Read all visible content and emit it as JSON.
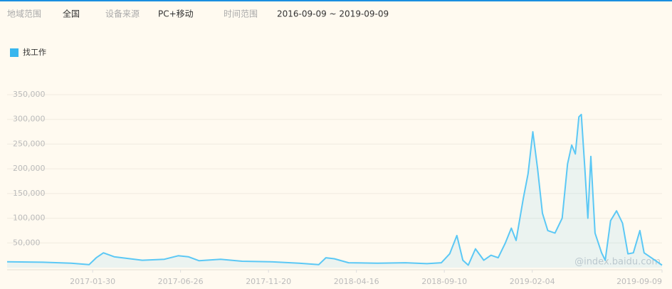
{
  "filters": [
    {
      "label": "地域范围",
      "value": "全国"
    },
    {
      "label": "设备来源",
      "value": "PC+移动"
    },
    {
      "label": "时间范围",
      "value": "2016-09-09 ~ 2019-09-09"
    }
  ],
  "chart_data": {
    "type": "line",
    "watermark": "@index.baidu.com",
    "xlim": [
      "2016-09-09",
      "2019-09-09"
    ],
    "xticks": [
      "2017-01-30",
      "2017-06-26",
      "2017-11-20",
      "2018-04-16",
      "2018-09-10",
      "2019-02-04",
      "2019-09-09"
    ],
    "ylim": [
      0,
      350000
    ],
    "yticks": [
      {
        "value": 50000,
        "label": "50,000"
      },
      {
        "value": 100000,
        "label": "100,000"
      },
      {
        "value": 150000,
        "label": "150,000"
      },
      {
        "value": 200000,
        "label": "200,000"
      },
      {
        "value": 250000,
        "label": "250,000"
      },
      {
        "value": 300000,
        "label": "300,000"
      },
      {
        "value": 350000,
        "label": "350,000"
      }
    ],
    "grid": true,
    "legend": "top-left",
    "x": [
      "2016-09-09",
      "2016-11-08",
      "2016-12-25",
      "2017-01-24",
      "2017-02-05",
      "2017-02-17",
      "2017-03-07",
      "2017-04-23",
      "2017-05-30",
      "2017-06-22",
      "2017-07-09",
      "2017-07-27",
      "2017-09-01",
      "2017-10-07",
      "2017-11-23",
      "2018-01-10",
      "2018-02-12",
      "2018-02-24",
      "2018-03-10",
      "2018-04-03",
      "2018-05-21",
      "2018-07-07",
      "2018-08-12",
      "2018-09-05",
      "2018-09-19",
      "2018-10-01",
      "2018-10-11",
      "2018-10-20",
      "2018-11-01",
      "2018-11-15",
      "2018-11-27",
      "2018-12-09",
      "2018-12-21",
      "2018-12-31",
      "2019-01-08",
      "2019-01-20",
      "2019-01-28",
      "2019-02-05",
      "2019-02-13",
      "2019-02-21",
      "2019-03-02",
      "2019-03-14",
      "2019-03-26",
      "2019-04-04",
      "2019-04-11",
      "2019-04-17",
      "2019-04-23",
      "2019-04-27",
      "2019-05-03",
      "2019-05-08",
      "2019-05-13",
      "2019-05-20",
      "2019-05-31",
      "2019-06-06",
      "2019-06-15",
      "2019-06-25",
      "2019-07-05",
      "2019-07-14",
      "2019-07-23",
      "2019-08-03",
      "2019-08-10",
      "2019-08-22",
      "2019-09-09"
    ],
    "series": [
      {
        "name": "找工作",
        "color": "#5bc8f5",
        "values": [
          12000,
          11000,
          9000,
          6000,
          20000,
          30000,
          22000,
          15000,
          17000,
          24000,
          22000,
          14000,
          17000,
          13000,
          12000,
          9000,
          6000,
          20000,
          18000,
          10000,
          9000,
          10000,
          8000,
          10000,
          28000,
          65000,
          15000,
          5000,
          38000,
          15000,
          25000,
          20000,
          50000,
          80000,
          55000,
          140000,
          190000,
          275000,
          200000,
          110000,
          75000,
          70000,
          100000,
          210000,
          248000,
          230000,
          305000,
          310000,
          200000,
          100000,
          225000,
          70000,
          30000,
          15000,
          95000,
          115000,
          90000,
          28000,
          30000,
          75000,
          30000,
          20000,
          5000
        ]
      }
    ]
  }
}
